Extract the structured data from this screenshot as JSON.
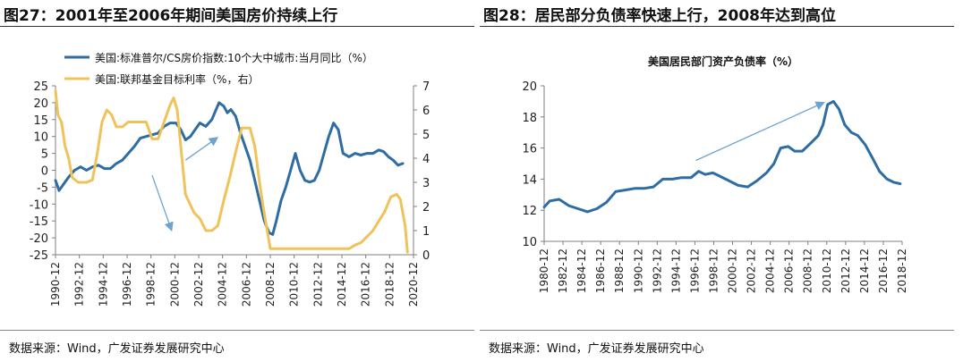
{
  "figures": [
    {
      "title": "图27：2001年至2006年期间美国房价持续上行",
      "source": "数据来源：Wind，广发证券发展研究中心"
    },
    {
      "title": "图28：居民部分负债率快速上行，2008年达到高位",
      "source": "数据来源：Wind，广发证券发展研究中心"
    }
  ],
  "colors": {
    "blue": "#2E6DA4",
    "gold": "#EFC35A",
    "arrow": "#6FA3CF",
    "axis": "#7F7F7F"
  },
  "chart_data": [
    {
      "type": "line",
      "title": "",
      "legend_position": "top",
      "x_ticks": [
        "1990-12",
        "1992-12",
        "1994-12",
        "1996-12",
        "1998-12",
        "2000-12",
        "2002-12",
        "2004-12",
        "2006-12",
        "2008-12",
        "2010-12",
        "2012-12",
        "2014-12",
        "2016-12",
        "2018-12",
        "2020-12"
      ],
      "x_range": [
        1990.9,
        2020.9
      ],
      "y_left": {
        "range": [
          -25,
          25
        ],
        "ticks": [
          "25",
          "20",
          "15",
          "10",
          "5",
          "0",
          "-5",
          "-10",
          "-15",
          "-20",
          "-25"
        ]
      },
      "y_right": {
        "range": [
          0,
          7
        ],
        "ticks": [
          "7",
          "6",
          "5",
          "4",
          "3",
          "2",
          "1",
          "0"
        ]
      },
      "grid": false,
      "series": [
        {
          "name": "美国:标准普尔/CS房价指数:10个大中城市:当月同比（%）",
          "axis": "left",
          "color": "#2E6DA4",
          "x": [
            1990.9,
            1991.2,
            1991.6,
            1992.0,
            1992.5,
            1993.0,
            1993.5,
            1994.0,
            1994.5,
            1995.0,
            1995.5,
            1996.0,
            1996.5,
            1997.0,
            1997.5,
            1998.0,
            1998.5,
            1999.0,
            1999.5,
            2000.0,
            2000.5,
            2001.0,
            2001.4,
            2001.8,
            2002.2,
            2002.6,
            2003.0,
            2003.5,
            2004.0,
            2004.3,
            2004.6,
            2005.0,
            2005.3,
            2005.6,
            2006.0,
            2006.4,
            2006.8,
            2007.2,
            2007.6,
            2008.0,
            2008.4,
            2008.8,
            2009.1,
            2009.4,
            2009.8,
            2010.2,
            2010.6,
            2011.0,
            2011.4,
            2011.8,
            2012.2,
            2012.6,
            2013.0,
            2013.4,
            2013.8,
            2014.2,
            2014.6,
            2015.0,
            2015.5,
            2016.0,
            2016.5,
            2017.0,
            2017.5,
            2018.0,
            2018.4,
            2018.8,
            2019.2,
            2019.6,
            2020.0
          ],
          "values": [
            -3,
            -6,
            -4,
            -2,
            0,
            1,
            0,
            1,
            1.5,
            0.5,
            0.5,
            2,
            3,
            5,
            7,
            9.5,
            10,
            10.5,
            11,
            13,
            14,
            14,
            12,
            9,
            10,
            12,
            14,
            13,
            15,
            17.5,
            20,
            19,
            17,
            18,
            16,
            11,
            7,
            3,
            -3,
            -9,
            -15,
            -18.5,
            -19,
            -15,
            -9,
            -5,
            0,
            5,
            0,
            -3,
            -3.5,
            -3,
            0,
            5,
            10,
            14,
            12,
            5,
            4,
            5,
            4.5,
            5,
            5,
            6,
            5.5,
            4,
            3,
            1.5,
            2
          ]
        },
        {
          "name": "美国:联邦基金目标利率（%，右）",
          "axis": "right",
          "color": "#EFC35A",
          "x": [
            1990.9,
            1991.1,
            1991.4,
            1991.7,
            1992.0,
            1992.3,
            1992.8,
            1993.5,
            1994.0,
            1994.4,
            1994.8,
            1995.2,
            1995.6,
            1996.0,
            1996.5,
            1997.0,
            1997.5,
            1998.0,
            1998.5,
            1999.0,
            1999.5,
            2000.0,
            2000.5,
            2000.8,
            2001.1,
            2001.5,
            2001.8,
            2002.5,
            2003.0,
            2003.5,
            2004.0,
            2004.5,
            2005.0,
            2005.5,
            2006.0,
            2006.5,
            2007.2,
            2007.6,
            2008.0,
            2008.3,
            2008.9,
            2009.5,
            2011.0,
            2012.5,
            2014.0,
            2015.5,
            2016.0,
            2016.5,
            2017.0,
            2017.5,
            2018.0,
            2018.5,
            2019.0,
            2019.5,
            2019.8,
            2020.2,
            2020.4
          ],
          "values": [
            6.8,
            5.8,
            5.5,
            4.5,
            4.0,
            3.2,
            3.0,
            3.0,
            3.1,
            4.2,
            5.5,
            6.0,
            5.8,
            5.3,
            5.3,
            5.5,
            5.5,
            5.5,
            5.5,
            4.8,
            4.8,
            5.5,
            6.2,
            6.5,
            6.0,
            4.0,
            2.5,
            1.75,
            1.5,
            1.0,
            1.0,
            1.2,
            2.25,
            3.2,
            4.25,
            5.25,
            5.25,
            4.5,
            3.0,
            2.0,
            0.25,
            0.25,
            0.25,
            0.25,
            0.25,
            0.25,
            0.4,
            0.5,
            0.75,
            1.0,
            1.4,
            1.8,
            2.4,
            2.5,
            2.3,
            1.2,
            0.1
          ]
        }
      ],
      "arrows": [
        {
          "x1": 2001.8,
          "y1": 3.0,
          "x2": 2004.4,
          "y2": 9.5,
          "axis": "left"
        },
        {
          "x1": 1999.0,
          "y1": -1.5,
          "x2": 2000.6,
          "y2": -17.5,
          "axis": "left"
        }
      ]
    },
    {
      "type": "line",
      "title": "美国居民部门资产负债率（%）",
      "x_ticks": [
        "1980-12",
        "1982-12",
        "1984-12",
        "1986-12",
        "1988-12",
        "1990-12",
        "1992-12",
        "1994-12",
        "1996-12",
        "1998-12",
        "2000-12",
        "2002-12",
        "2004-12",
        "2006-12",
        "2008-12",
        "2010-12",
        "2012-12",
        "2014-12",
        "2016-12",
        "2018-12"
      ],
      "x_range": [
        1980.9,
        2018.9
      ],
      "y_left": {
        "range": [
          10,
          20
        ],
        "ticks": [
          "20",
          "18",
          "16",
          "14",
          "12",
          "10"
        ]
      },
      "grid": false,
      "series": [
        {
          "name": "",
          "axis": "left",
          "color": "#2E6DA4",
          "x": [
            1980.9,
            1981.5,
            1982.5,
            1983.5,
            1984.5,
            1985.5,
            1986.5,
            1987.5,
            1988.5,
            1989.5,
            1990.5,
            1991.5,
            1992.5,
            1993.5,
            1994.5,
            1995.5,
            1996.5,
            1997.3,
            1998.0,
            1998.8,
            1999.5,
            2000.5,
            2001.5,
            2002.5,
            2003.5,
            2004.5,
            2005.3,
            2006.0,
            2006.8,
            2007.5,
            2008.3,
            2009.0,
            2009.5,
            2010.0,
            2010.5,
            2011.0,
            2011.6,
            2012.2,
            2012.8,
            2013.5,
            2014.2,
            2015.0,
            2015.8,
            2016.5,
            2017.3,
            2018.0,
            2018.7
          ],
          "values": [
            12.2,
            12.6,
            12.7,
            12.3,
            12.1,
            11.9,
            12.1,
            12.5,
            13.2,
            13.3,
            13.4,
            13.4,
            13.5,
            14.0,
            14.0,
            14.1,
            14.1,
            14.5,
            14.3,
            14.4,
            14.2,
            13.9,
            13.6,
            13.5,
            13.9,
            14.4,
            15.0,
            16.0,
            16.1,
            15.8,
            15.8,
            16.2,
            16.5,
            16.8,
            17.5,
            18.8,
            19.0,
            18.5,
            17.5,
            17.0,
            16.8,
            16.2,
            15.3,
            14.5,
            14.0,
            13.8,
            13.7
          ]
        }
      ],
      "arrows": [
        {
          "x1": 1997.0,
          "y1": 15.2,
          "x2": 2010.5,
          "y2": 18.9,
          "axis": "left"
        }
      ]
    }
  ]
}
